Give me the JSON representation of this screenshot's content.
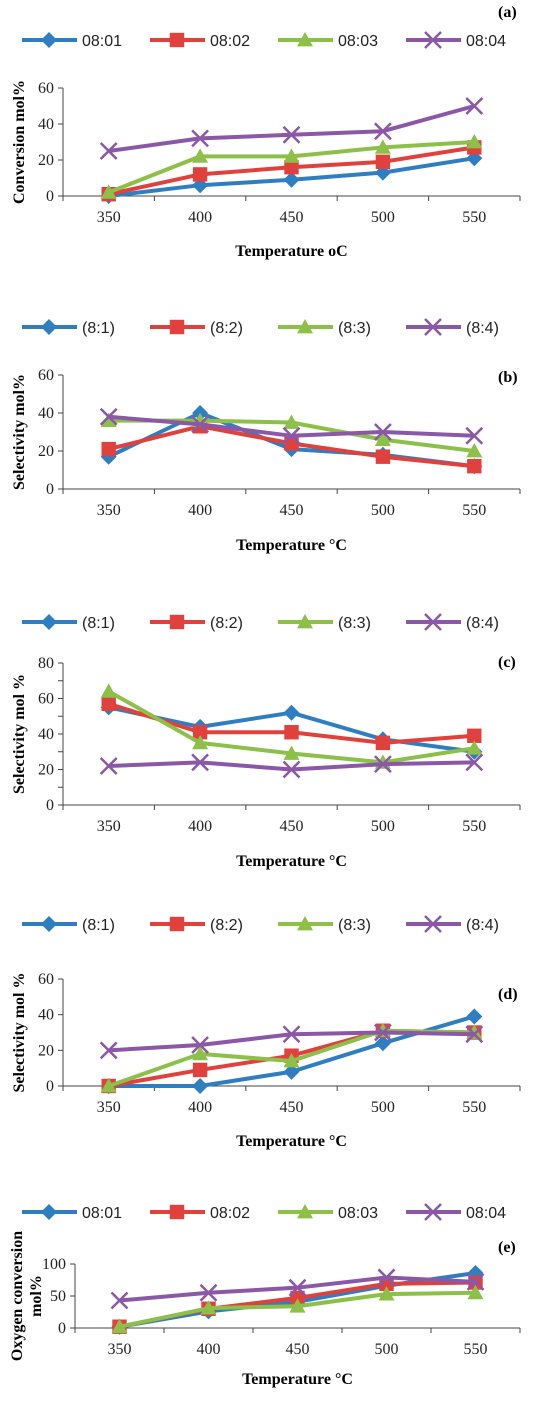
{
  "colors": {
    "series": [
      "#2f7ec1",
      "#e0413c",
      "#8cc049",
      "#8a58a6"
    ],
    "axis": "#444444",
    "text": "#222222"
  },
  "markers": [
    "diamond",
    "square",
    "triangle",
    "x"
  ],
  "chart_data": [
    {
      "type": "line",
      "label": "(a)",
      "xlabel": "Temperature oC",
      "ylabel": "Conversion mol%",
      "x": [
        350,
        400,
        450,
        500,
        550
      ],
      "ylim": [
        0,
        60
      ],
      "yticks": [
        0,
        20,
        40,
        60
      ],
      "grid": false,
      "legend_position": "top",
      "series": [
        {
          "name": "08:01",
          "values": [
            0,
            6,
            9,
            13,
            21
          ]
        },
        {
          "name": "08:02",
          "values": [
            1,
            12,
            16,
            19,
            27
          ]
        },
        {
          "name": "08:03",
          "values": [
            2,
            22,
            22,
            27,
            30
          ]
        },
        {
          "name": "08:04",
          "values": [
            25,
            32,
            34,
            36,
            50
          ]
        }
      ]
    },
    {
      "type": "line",
      "label": "(b)",
      "xlabel": "Temperature °C",
      "ylabel": "Selectivity mol%",
      "x": [
        350,
        400,
        450,
        500,
        550
      ],
      "ylim": [
        0,
        60
      ],
      "yticks": [
        0,
        20,
        40,
        60
      ],
      "grid": false,
      "legend_position": "top",
      "series": [
        {
          "name": "(8:1)",
          "values": [
            17,
            40,
            21,
            18,
            12
          ]
        },
        {
          "name": "(8:2)",
          "values": [
            21,
            33,
            24,
            17,
            12
          ]
        },
        {
          "name": "(8:3)",
          "values": [
            36,
            36,
            35,
            26,
            20
          ]
        },
        {
          "name": "(8:4)",
          "values": [
            38,
            34,
            28,
            30,
            28
          ]
        }
      ]
    },
    {
      "type": "line",
      "label": "(c)",
      "xlabel": "Temperature °C",
      "ylabel": "Selectivity mol %",
      "x": [
        350,
        400,
        450,
        500,
        550
      ],
      "ylim": [
        0,
        80
      ],
      "yticks": [
        0,
        10,
        20,
        30,
        40,
        50,
        60,
        70,
        80
      ],
      "ytick_labels": [
        "0",
        "",
        "20",
        "",
        "40",
        "",
        "60",
        "",
        "80"
      ],
      "grid": false,
      "legend_position": "top",
      "series": [
        {
          "name": "(8:1)",
          "values": [
            55,
            44,
            52,
            37,
            30
          ]
        },
        {
          "name": "(8:2)",
          "values": [
            57,
            41,
            41,
            35,
            39
          ]
        },
        {
          "name": "(8:3)",
          "values": [
            64,
            35,
            29,
            24,
            32
          ]
        },
        {
          "name": "(8:4)",
          "values": [
            22,
            24,
            20,
            23,
            24
          ]
        }
      ]
    },
    {
      "type": "line",
      "label": "(d)",
      "xlabel": "Temperature °C",
      "ylabel": "Selectivity mol %",
      "x": [
        350,
        400,
        450,
        500,
        550
      ],
      "ylim": [
        0,
        60
      ],
      "yticks": [
        0,
        20,
        40,
        60
      ],
      "grid": false,
      "legend_position": "top",
      "series": [
        {
          "name": "(8:1)",
          "values": [
            0,
            0,
            8,
            24,
            39
          ]
        },
        {
          "name": "(8:2)",
          "values": [
            0,
            9,
            17,
            31,
            30
          ]
        },
        {
          "name": "(8:3)",
          "values": [
            0,
            18,
            14,
            31,
            30
          ]
        },
        {
          "name": "(8:4)",
          "values": [
            20,
            23,
            29,
            30,
            29
          ]
        }
      ]
    },
    {
      "type": "line",
      "label": "(e)",
      "xlabel": "Temperature °C",
      "ylabel": "Oxygen conversion mol%",
      "x": [
        350,
        400,
        450,
        500,
        550
      ],
      "ylim": [
        0,
        100
      ],
      "yticks": [
        0,
        50,
        100
      ],
      "grid": false,
      "legend_position": "top",
      "series": [
        {
          "name": "08:01",
          "values": [
            2,
            26,
            41,
            66,
            86
          ]
        },
        {
          "name": "08:02",
          "values": [
            2,
            30,
            47,
            69,
            71
          ]
        },
        {
          "name": "08:03",
          "values": [
            2,
            31,
            34,
            53,
            55
          ]
        },
        {
          "name": "08:04",
          "values": [
            43,
            55,
            63,
            79,
            72
          ]
        }
      ]
    }
  ]
}
